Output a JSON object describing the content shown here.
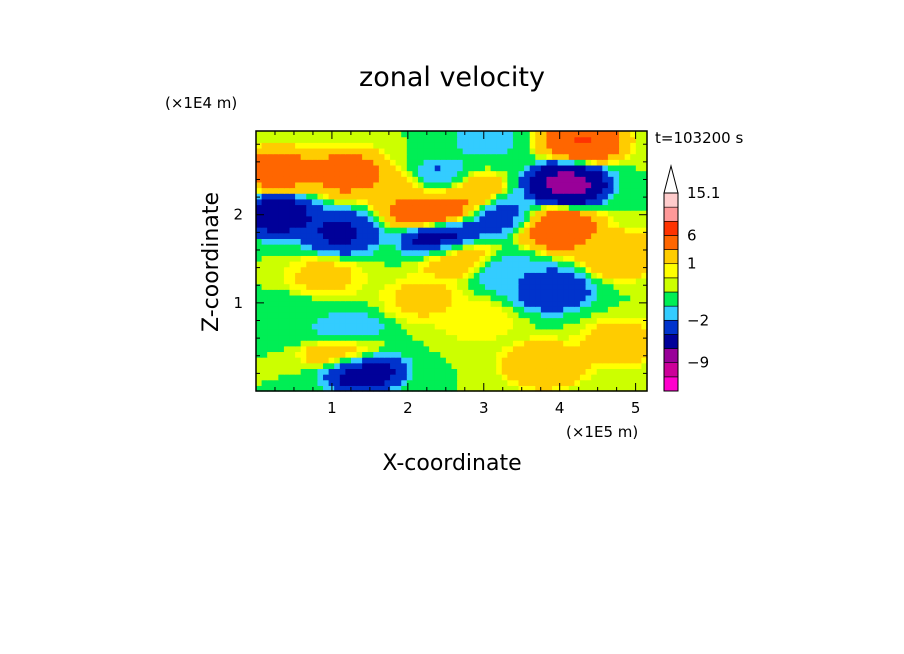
{
  "chart_data": {
    "type": "heatmap",
    "title": "zonal velocity",
    "xlabel": "X-coordinate",
    "ylabel": "Z-coordinate",
    "x_unit": "(×1E5 m)",
    "y_unit": "(×1E4 m)",
    "time_label": "t=103200 s",
    "xlim": [
      0,
      5.15
    ],
    "ylim": [
      0,
      2.95
    ],
    "x_ticks": [
      "1",
      "2",
      "3",
      "4",
      "5"
    ],
    "y_ticks": [
      "1",
      "2"
    ],
    "x_tick_values": [
      1,
      2,
      3,
      4,
      5
    ],
    "y_tick_values": [
      1,
      2
    ],
    "colorbar": {
      "labels": [
        "15.1",
        "6",
        "1",
        "−2",
        "−9"
      ],
      "label_values": [
        15.1,
        6,
        1,
        -2,
        -9
      ],
      "colors": [
        "#ff00cc",
        "#cc0099",
        "#990099",
        "#000099",
        "#0033cc",
        "#33ccff",
        "#00ee55",
        "#ccff00",
        "#ffff00",
        "#ffcc00",
        "#ff6600",
        "#ff3300",
        "#ff9999",
        "#ffcccc"
      ],
      "levels": [
        -13,
        -11,
        -9,
        -7,
        -4,
        -2,
        -1,
        0,
        0.5,
        1,
        3,
        6,
        9,
        12,
        15.1
      ],
      "extend": "max"
    },
    "field_features": [
      {
        "x": 0.3,
        "z": 2.5,
        "value": 5
      },
      {
        "x": 1.2,
        "z": 2.48,
        "value": 5
      },
      {
        "x": 2.0,
        "z": 2.25,
        "value": 3
      },
      {
        "x": 0.3,
        "z": 2.0,
        "value": -6
      },
      {
        "x": 1.1,
        "z": 1.8,
        "value": -5
      },
      {
        "x": 2.3,
        "z": 2.05,
        "value": 8
      },
      {
        "x": 2.45,
        "z": 1.75,
        "value": -7
      },
      {
        "x": 2.45,
        "z": 2.35,
        "value": -4
      },
      {
        "x": 2.7,
        "z": 2.25,
        "value": 5
      },
      {
        "x": 2.65,
        "z": 1.55,
        "value": 3
      },
      {
        "x": 3.2,
        "z": 2.0,
        "value": -3
      },
      {
        "x": 4.1,
        "z": 2.35,
        "value": -9
      },
      {
        "x": 4.0,
        "z": 1.85,
        "value": 6
      },
      {
        "x": 4.3,
        "z": 2.85,
        "value": 7
      },
      {
        "x": 3.0,
        "z": 2.85,
        "value": -1.5
      },
      {
        "x": 4.8,
        "z": 1.55,
        "value": 3
      },
      {
        "x": 3.9,
        "z": 1.15,
        "value": -4
      },
      {
        "x": 3.3,
        "z": 1.35,
        "value": -2
      },
      {
        "x": 0.5,
        "z": 0.85,
        "value": -1
      },
      {
        "x": 1.2,
        "z": 0.65,
        "value": -2.5
      },
      {
        "x": 1.4,
        "z": 0.25,
        "value": -7
      },
      {
        "x": 1.2,
        "z": 0.45,
        "value": 4
      },
      {
        "x": 3.8,
        "z": 0.3,
        "value": 3
      },
      {
        "x": 4.8,
        "z": 0.55,
        "value": 2
      },
      {
        "x": 0.9,
        "z": 1.3,
        "value": 1.5
      },
      {
        "x": 2.2,
        "z": 1.05,
        "value": 1.5
      },
      {
        "x": 2.9,
        "z": 0.8,
        "value": 1
      }
    ]
  }
}
